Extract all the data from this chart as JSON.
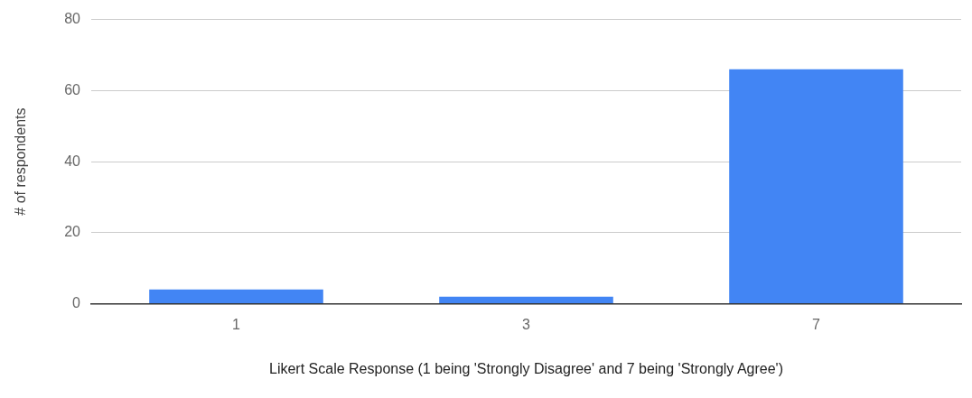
{
  "chart_data": {
    "type": "bar",
    "xlabel": "Likert Scale Response (1 being 'Strongly Disagree' and 7 being 'Strongly Agree')",
    "ylabel": "# of respondents",
    "categories": [
      "1",
      "3",
      "7"
    ],
    "values": [
      4,
      2,
      66
    ],
    "color": "#4285f4",
    "ylim": [
      0,
      80
    ],
    "yticks": [
      0,
      20,
      40,
      60,
      80
    ],
    "grid": "y",
    "legend": false
  }
}
